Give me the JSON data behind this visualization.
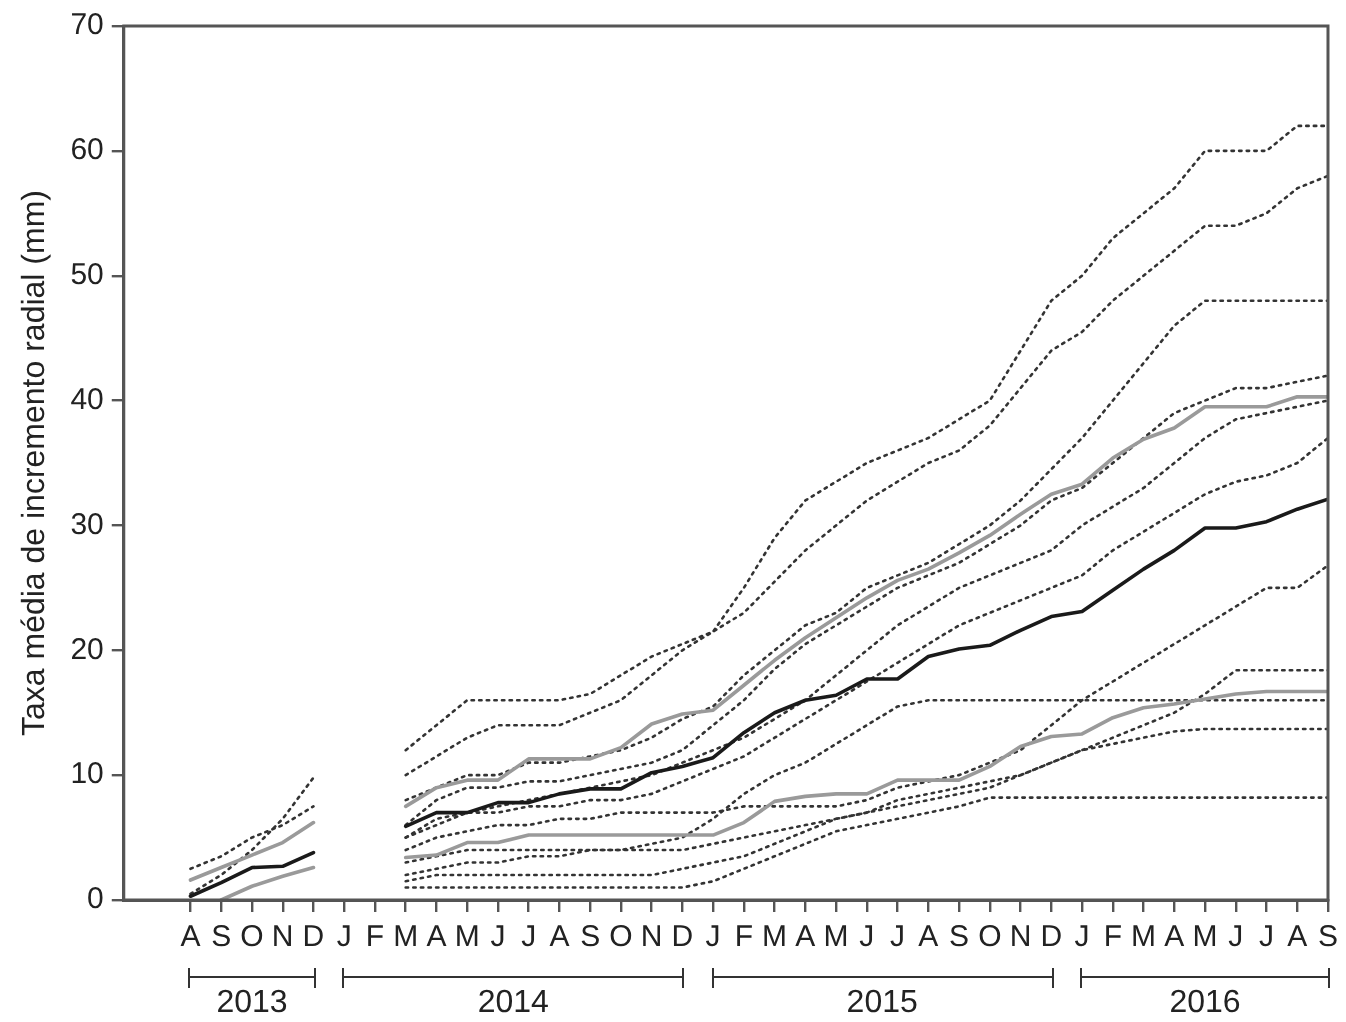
{
  "chart_data": {
    "type": "line",
    "ylabel": "Taxa média de incremento radial (mm)",
    "categories": [
      "A",
      "S",
      "O",
      "N",
      "D",
      "J",
      "F",
      "M",
      "A",
      "M",
      "J",
      "J",
      "A",
      "S",
      "O",
      "N",
      "D",
      "J",
      "F",
      "M",
      "A",
      "M",
      "J",
      "J",
      "A",
      "S",
      "O",
      "N",
      "D",
      "J",
      "F",
      "M",
      "A",
      "M",
      "J",
      "J",
      "A",
      "S"
    ],
    "ylim": [
      0,
      70
    ],
    "yticks": [
      0,
      10,
      20,
      30,
      40,
      50,
      60,
      70
    ],
    "grid": false,
    "legend": false,
    "marker": "none",
    "annotations": [
      "2013",
      "2014",
      "2015",
      "2016"
    ],
    "series": [
      {
        "color": "#333333",
        "line_style": "dotted",
        "values": [
          0.5,
          2,
          4,
          6.5,
          9.8,
          null,
          null,
          12,
          14,
          16,
          16,
          16,
          16,
          16.5,
          18,
          19.5,
          20.5,
          21.5,
          25,
          29,
          32,
          33.5,
          35,
          36,
          37,
          38.5,
          40,
          44,
          48,
          50,
          53,
          55,
          57,
          60,
          60,
          60,
          62,
          62
        ]
      },
      {
        "color": "#333333",
        "line_style": "dotted",
        "values": [
          2.5,
          3.5,
          5,
          6,
          7.5,
          null,
          null,
          10,
          11.5,
          13,
          14,
          14,
          14,
          15,
          16,
          18,
          20,
          21.5,
          23,
          25.5,
          28,
          30,
          32,
          33.5,
          35,
          36,
          38,
          41,
          44,
          45.5,
          48,
          50,
          52,
          54,
          54,
          55,
          57,
          58
        ]
      },
      {
        "color": "#333333",
        "line_style": "dotted",
        "values": [
          null,
          null,
          null,
          null,
          null,
          null,
          null,
          8,
          9,
          10,
          10,
          11,
          11,
          11.5,
          12,
          13,
          14.5,
          15.5,
          18,
          20,
          22,
          23,
          25,
          26,
          27,
          28.5,
          30,
          32,
          34.5,
          37,
          40,
          43,
          46,
          48,
          48,
          48,
          48,
          48
        ]
      },
      {
        "color": "#333333",
        "line_style": "dotted",
        "values": [
          null,
          null,
          null,
          null,
          null,
          null,
          null,
          6,
          8,
          9,
          9,
          9.5,
          9.5,
          10,
          10.5,
          11,
          12,
          14,
          16,
          18.5,
          20.5,
          22,
          23.5,
          25,
          26,
          27,
          28.5,
          30,
          32,
          33,
          35,
          37,
          39,
          40,
          41,
          41,
          41.5,
          42
        ]
      },
      {
        "color": "#333333",
        "line_style": "dotted",
        "values": [
          null,
          null,
          null,
          null,
          null,
          null,
          null,
          5,
          6.5,
          7,
          7.5,
          8,
          8.5,
          9,
          9.5,
          10,
          11,
          12,
          13,
          14.5,
          16,
          18,
          20,
          22,
          23.5,
          25,
          26,
          27,
          28,
          30,
          31.5,
          33,
          35,
          37,
          38.5,
          39,
          39.5,
          40
        ]
      },
      {
        "color": "#333333",
        "line_style": "dotted",
        "values": [
          null,
          null,
          null,
          null,
          null,
          null,
          null,
          5,
          6,
          7,
          7,
          7.5,
          7.5,
          8,
          8,
          8.5,
          9.5,
          10.5,
          11.5,
          13,
          14.5,
          16,
          17.5,
          19,
          20.5,
          22,
          23,
          24,
          25,
          26,
          28,
          29.5,
          31,
          32.5,
          33.5,
          34,
          35,
          37
        ]
      },
      {
        "color": "#333333",
        "line_style": "dotted",
        "values": [
          null,
          null,
          null,
          null,
          null,
          null,
          null,
          4,
          5,
          5.5,
          6,
          6,
          6.5,
          6.5,
          7,
          7,
          7,
          7,
          7.5,
          7.5,
          7.5,
          7.5,
          8,
          9,
          9.5,
          10,
          11,
          12,
          14,
          16,
          17.5,
          19,
          20.5,
          22,
          23.5,
          25,
          25,
          26.8
        ]
      },
      {
        "color": "#333333",
        "line_style": "dotted",
        "values": [
          null,
          null,
          null,
          null,
          null,
          null,
          null,
          3,
          3.5,
          4,
          4,
          4,
          4,
          4,
          4,
          4,
          4,
          4.5,
          5,
          5.5,
          6,
          6.5,
          7,
          7.5,
          8,
          8.5,
          9,
          10,
          11,
          12,
          13,
          14,
          15,
          16.5,
          18.4,
          18.4,
          18.4,
          18.4
        ]
      },
      {
        "color": "#333333",
        "line_style": "dotted",
        "values": [
          null,
          null,
          null,
          null,
          null,
          null,
          null,
          2,
          2.5,
          3,
          3,
          3.5,
          3.5,
          4,
          4,
          4.5,
          5,
          6.5,
          8.5,
          10,
          11,
          12.5,
          14,
          15.5,
          16,
          16,
          16,
          16,
          16,
          16,
          16,
          16,
          16,
          16,
          16,
          16,
          16,
          16
        ]
      },
      {
        "color": "#333333",
        "line_style": "dotted",
        "values": [
          null,
          null,
          null,
          null,
          null,
          null,
          null,
          1.5,
          2,
          2,
          2,
          2,
          2,
          2,
          2,
          2,
          2.5,
          3,
          3.5,
          4.5,
          5.5,
          6.5,
          7,
          8,
          8.5,
          9,
          9.5,
          10,
          11,
          12,
          12.5,
          13,
          13.5,
          13.7,
          13.7,
          13.7,
          13.7,
          13.7
        ]
      },
      {
        "color": "#333333",
        "line_style": "dotted",
        "values": [
          null,
          null,
          null,
          null,
          null,
          null,
          null,
          1,
          1,
          1,
          1,
          1,
          1,
          1,
          1,
          1,
          1,
          1.5,
          2.5,
          3.5,
          4.5,
          5.5,
          6,
          6.5,
          7,
          7.5,
          8.2,
          8.2,
          8.2,
          8.2,
          8.2,
          8.2,
          8.2,
          8.2,
          8.2,
          8.2,
          8.2,
          8.2
        ]
      },
      {
        "color": "#9a9a9a",
        "line_style": "solid",
        "values": [
          1.6,
          2.6,
          3.6,
          4.6,
          6.2,
          null,
          null,
          7.5,
          9.0,
          9.6,
          9.6,
          11.3,
          11.3,
          11.3,
          12.2,
          14.1,
          14.9,
          15.2,
          17.2,
          19.2,
          21.0,
          22.6,
          24.2,
          25.6,
          26.5,
          27.8,
          29.2,
          30.9,
          32.5,
          33.3,
          35.4,
          36.9,
          37.8,
          39.5,
          39.5,
          39.5,
          40.3,
          40.3
        ]
      },
      {
        "color": "#9a9a9a",
        "line_style": "solid",
        "values": [
          null,
          0.0,
          1.1,
          1.9,
          2.6,
          null,
          null,
          3.4,
          3.6,
          4.6,
          4.6,
          5.2,
          5.2,
          5.2,
          5.2,
          5.2,
          5.2,
          5.2,
          6.2,
          7.9,
          8.3,
          8.5,
          8.5,
          9.6,
          9.6,
          9.6,
          10.7,
          12.3,
          13.1,
          13.3,
          14.6,
          15.4,
          15.7,
          16.1,
          16.5,
          16.7,
          16.7,
          16.7
        ]
      },
      {
        "color": "#1a1a1a",
        "line_style": "solid",
        "values": [
          0.3,
          1.4,
          2.6,
          2.7,
          3.8,
          null,
          null,
          5.9,
          7.0,
          7.0,
          7.8,
          7.8,
          8.5,
          8.9,
          8.9,
          10.2,
          10.7,
          11.4,
          13.4,
          15.0,
          16.0,
          16.4,
          17.7,
          17.7,
          19.5,
          20.1,
          20.4,
          21.6,
          22.7,
          23.1,
          24.8,
          26.5,
          28.0,
          29.8,
          29.8,
          30.3,
          31.3,
          32.1
        ]
      }
    ]
  }
}
